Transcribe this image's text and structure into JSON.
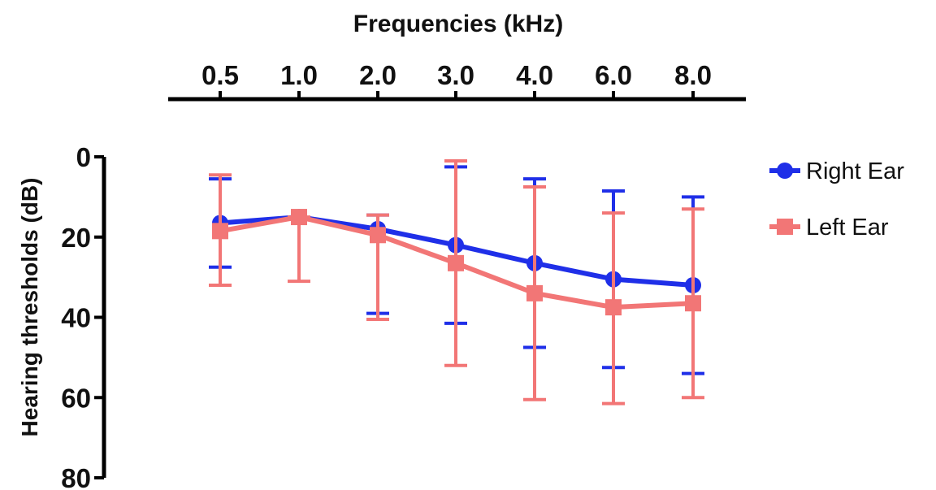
{
  "chart_data": {
    "type": "line",
    "title": "",
    "xlabel": "Frequencies (kHz)",
    "ylabel": "Hearing thresholds (dB)",
    "categories": [
      "0.5",
      "1.0",
      "2.0",
      "3.0",
      "4.0",
      "6.0",
      "8.0"
    ],
    "ylim": [
      0,
      80
    ],
    "y_inverted": true,
    "x_axis_position": "top",
    "yticks": [
      "0",
      "20",
      "40",
      "60",
      "80"
    ],
    "grid": false,
    "legend_position": "right",
    "series": [
      {
        "name": "Right Ear",
        "color": "#1f2fe8",
        "marker": "circle",
        "values": [
          16.5,
          15,
          18,
          22,
          26.5,
          30.5,
          32
        ],
        "error_low": [
          5.5,
          15,
          14.5,
          2.5,
          5.5,
          8.5,
          10
        ],
        "error_high": [
          27.5,
          15,
          39,
          41.5,
          47.5,
          52.5,
          54
        ]
      },
      {
        "name": "Left Ear",
        "color": "#f27676",
        "marker": "square",
        "values": [
          18.5,
          15,
          19.5,
          26.5,
          34,
          37.5,
          36.5
        ],
        "error_low": [
          4.5,
          15,
          14.5,
          1,
          7.5,
          14,
          13
        ],
        "error_high": [
          32,
          31,
          40.5,
          52,
          60.5,
          61.5,
          60
        ]
      }
    ]
  }
}
